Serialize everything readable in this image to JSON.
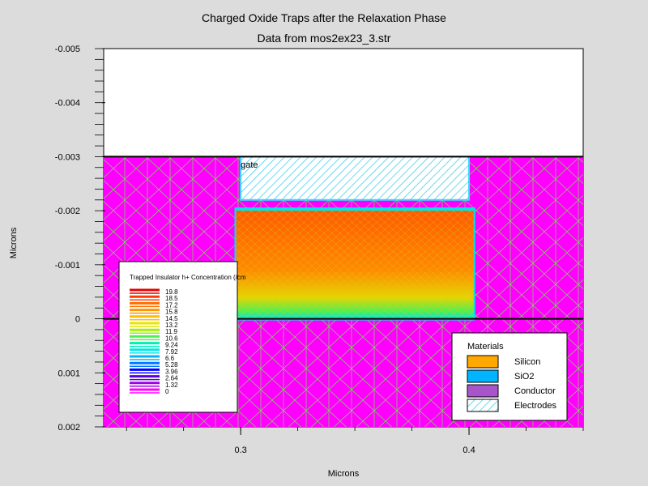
{
  "chart_data": {
    "type": "heatmap",
    "title": "Charged Oxide Traps after the Relaxation Phase",
    "subtitle": "Data from mos2ex23_3.str",
    "xlabel": "Microns",
    "ylabel": "Microns",
    "xlim": [
      0.24,
      0.45
    ],
    "ylim": [
      -0.005,
      0.002
    ],
    "x_ticks": [
      {
        "value": 0.3,
        "label": "0.3"
      },
      {
        "value": 0.4,
        "label": "0.4"
      }
    ],
    "y_ticks": [
      {
        "value": -0.005,
        "label": "-0.005"
      },
      {
        "value": -0.004,
        "label": "-0.004"
      },
      {
        "value": -0.003,
        "label": "-0.003"
      },
      {
        "value": -0.002,
        "label": "-0.002"
      },
      {
        "value": -0.001,
        "label": "-0.001"
      },
      {
        "value": 0,
        "label": "0"
      },
      {
        "value": 0.001,
        "label": "0.001"
      },
      {
        "value": 0.002,
        "label": "0.002"
      }
    ],
    "regions": [
      {
        "name": "silicon-substrate",
        "material": "Silicon",
        "x": [
          0.24,
          0.45
        ],
        "y": [
          0,
          0.002
        ],
        "color": "#ff00ff"
      },
      {
        "name": "oxide-layer",
        "material": "SiO2",
        "x": [
          0.24,
          0.45
        ],
        "y": [
          -0.003,
          0
        ],
        "color": "#ff00ff"
      },
      {
        "name": "trapped-charge-region",
        "material": "SiO2",
        "x": [
          0.298,
          0.402
        ],
        "y": [
          -0.002,
          0
        ],
        "color": "#ff4a00"
      },
      {
        "name": "gate-electrode",
        "material": "Electrodes",
        "x": [
          0.3,
          0.4
        ],
        "y": [
          -0.003,
          -0.0022
        ],
        "color": "#33ddff"
      }
    ],
    "electrode_label": {
      "text": "gate",
      "x": 0.3,
      "y": -0.0028
    },
    "legend": {
      "title": "Trapped Insulator h+ Concentration (/cm",
      "placement": "bottom-left",
      "levels": [
        {
          "label": "19.8",
          "color": "#e60000"
        },
        {
          "label": "18.5",
          "color": "#ff3c00"
        },
        {
          "label": "17.2",
          "color": "#ff6e00"
        },
        {
          "label": "15.8",
          "color": "#ff9600"
        },
        {
          "label": "14.5",
          "color": "#ffbe00"
        },
        {
          "label": "13.2",
          "color": "#e6e600"
        },
        {
          "label": "11.9",
          "color": "#a0f000"
        },
        {
          "label": "10.6",
          "color": "#50f050"
        },
        {
          "label": "9.24",
          "color": "#00f0b4"
        },
        {
          "label": "7.92",
          "color": "#00e6e6"
        },
        {
          "label": "6.6",
          "color": "#00b4ff"
        },
        {
          "label": "5.28",
          "color": "#0078ff"
        },
        {
          "label": "3.96",
          "color": "#0000ff"
        },
        {
          "label": "2.64",
          "color": "#5a00e6"
        },
        {
          "label": "1.32",
          "color": "#a000e6"
        },
        {
          "label": "0",
          "color": "#ff00ff"
        }
      ]
    },
    "materials": {
      "title": "Materials",
      "placement": "bottom-right",
      "items": [
        {
          "label": "Silicon",
          "color": "#ffa800",
          "pattern": "solid"
        },
        {
          "label": "SiO2",
          "color": "#00b4ff",
          "pattern": "solid"
        },
        {
          "label": "Conductor",
          "color": "#a855cc",
          "pattern": "solid"
        },
        {
          "label": "Electrodes",
          "color": "#00ccee",
          "pattern": "hatch"
        }
      ]
    },
    "grid": false,
    "mesh": true
  }
}
